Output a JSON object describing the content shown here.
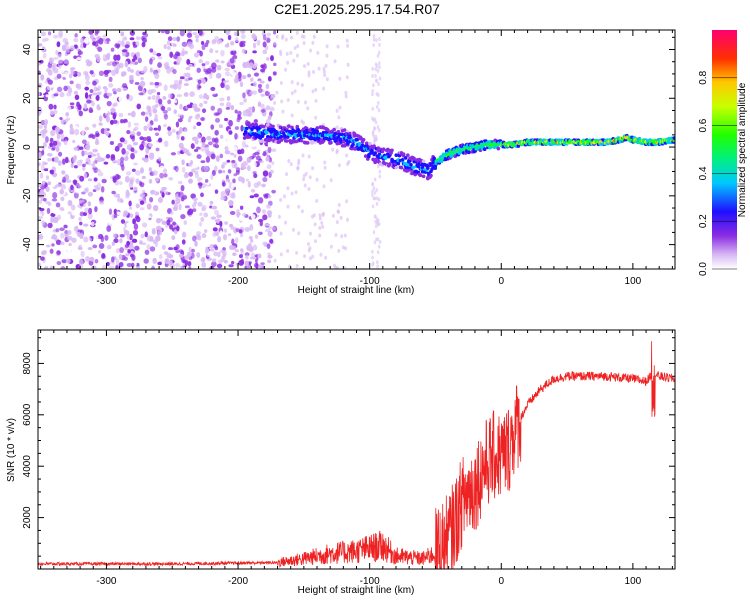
{
  "title": "C2E1.2025.295.17.54.R07",
  "chart_data": [
    {
      "type": "heatmap",
      "name": "spectrogram",
      "xlabel": "Height of straight line (km)",
      "ylabel": "Frequency (Hz)",
      "xlim": [
        -352,
        132
      ],
      "ylim": [
        -50,
        48
      ],
      "xticks": [
        -300,
        -200,
        -100,
        0,
        100
      ],
      "yticks": [
        -40,
        -20,
        0,
        20,
        40
      ],
      "ridge": {
        "x": [
          -195,
          -180,
          -160,
          -140,
          -120,
          -110,
          -100,
          -90,
          -80,
          -70,
          -60,
          -55,
          -50,
          -40,
          -30,
          -20,
          -10,
          0,
          10,
          20,
          40,
          60,
          80,
          90,
          95,
          100,
          110,
          120,
          132
        ],
        "y": [
          7,
          6,
          5,
          5,
          4,
          2,
          -2,
          -4,
          -5,
          -7,
          -9,
          -10,
          -6,
          -3,
          -1,
          0,
          1,
          1,
          1,
          2,
          2,
          2,
          2,
          3,
          4,
          3,
          2,
          2,
          3
        ]
      },
      "colorbar": {
        "label": "Normalized spectral amplitude",
        "ticks": [
          "0.0",
          "0.2",
          "0.4",
          "0.6",
          "0.8"
        ],
        "tick_values": [
          0,
          0.2,
          0.4,
          0.6,
          0.8
        ],
        "range": [
          0,
          1
        ]
      }
    },
    {
      "type": "line",
      "name": "snr",
      "xlabel": "Height of straight line (km)",
      "ylabel": "SNR (10 * v/v)",
      "xlim": [
        -352,
        132
      ],
      "ylim": [
        0,
        9300
      ],
      "xticks": [
        -300,
        -200,
        -100,
        0,
        100
      ],
      "yticks": [
        2000,
        4000,
        6000,
        8000
      ],
      "color": "#ee2222",
      "envelope": {
        "x": [
          -352,
          -250,
          -170,
          -150,
          -130,
          -110,
          -100,
          -90,
          -80,
          -60,
          -50,
          -40,
          -35,
          -30,
          -25,
          -20,
          -15,
          -10,
          -5,
          0,
          5,
          10,
          20,
          30,
          40,
          50,
          60,
          80,
          100,
          110,
          115,
          120,
          132
        ],
        "y": [
          200,
          200,
          250,
          400,
          600,
          700,
          800,
          900,
          500,
          400,
          600,
          1200,
          1800,
          2600,
          3000,
          3200,
          3800,
          4200,
          4400,
          4400,
          4600,
          5400,
          6400,
          7000,
          7400,
          7500,
          7500,
          7500,
          7400,
          7300,
          7600,
          7500,
          7400
        ]
      }
    }
  ]
}
